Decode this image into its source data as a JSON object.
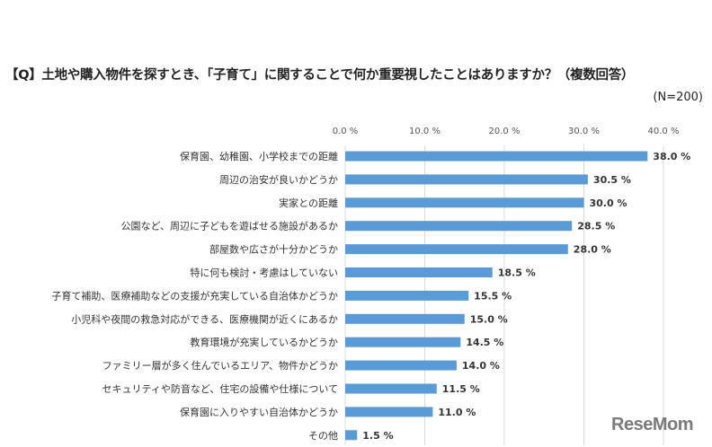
{
  "chart_data": {
    "type": "bar",
    "orientation": "horizontal",
    "title": "【Q】土地や購入物件を探すとき、「子育て」に関することで何か重要視したことはありますか？（複数回答）",
    "subtitle": "(N=200)",
    "xlim": [
      0,
      40
    ],
    "ticks": [
      0,
      10,
      20,
      30,
      40
    ],
    "tick_labels": [
      "0.0 %",
      "10.0 %",
      "20.0 %",
      "30.0 %",
      "40.0 %"
    ],
    "grid": true,
    "bar_color": "#5B9BD5",
    "categories": [
      "保育園、幼稚園、小学校までの距離",
      "周辺の治安が良いかどうか",
      "実家との距離",
      "公園など、周辺に子どもを遊ばせる施設があるか",
      "部屋数や広さが十分かどうか",
      "特に何も検討・考慮はしていない",
      "子育て補助、医療補助などの支援が充実している自治体かどうか",
      "小児科や夜間の救急対応ができる、医療機関が近くにあるか",
      "教育環境が充実しているかどうか",
      "ファミリー層が多く住んでいるエリア、物件かどうか",
      "セキュリティや防音など、住宅の設備や仕様について",
      "保育園に入りやすい自治体かどうか",
      "その他"
    ],
    "values": [
      38.0,
      30.5,
      30.0,
      28.5,
      28.0,
      18.5,
      15.5,
      15.0,
      14.5,
      14.0,
      11.5,
      11.0,
      1.5
    ],
    "value_labels": [
      "38.0 %",
      "30.5 %",
      "30.0 %",
      "28.5 %",
      "28.0 %",
      "18.5 %",
      "15.5 %",
      "15.0 %",
      "14.5 %",
      "14.0 %",
      "11.5 %",
      "11.0 %",
      "1.5 %"
    ]
  },
  "logo": "ReseMom"
}
